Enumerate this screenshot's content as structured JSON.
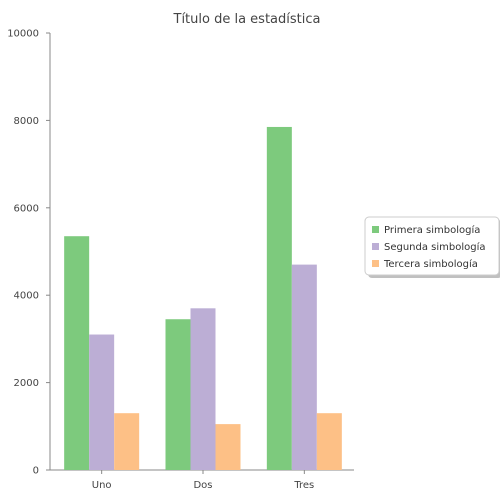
{
  "chart_data": {
    "type": "bar",
    "title": "Título de la estadística",
    "categories": [
      "Uno",
      "Dos",
      "Tres"
    ],
    "series": [
      {
        "name": "Primera simbología",
        "values": [
          5350,
          3450,
          7850
        ],
        "color": "#7dca7d"
      },
      {
        "name": "Segunda simbología",
        "values": [
          3100,
          3700,
          4700
        ],
        "color": "#bcaed5"
      },
      {
        "name": "Tercera simbología",
        "values": [
          1300,
          1050,
          1300
        ],
        "color": "#fdc086"
      }
    ],
    "ylim": [
      0,
      10000
    ],
    "yticks": [
      0,
      2000,
      4000,
      6000,
      8000,
      10000
    ],
    "xlabel": "",
    "ylabel": "",
    "grid": false,
    "legend": "right"
  }
}
